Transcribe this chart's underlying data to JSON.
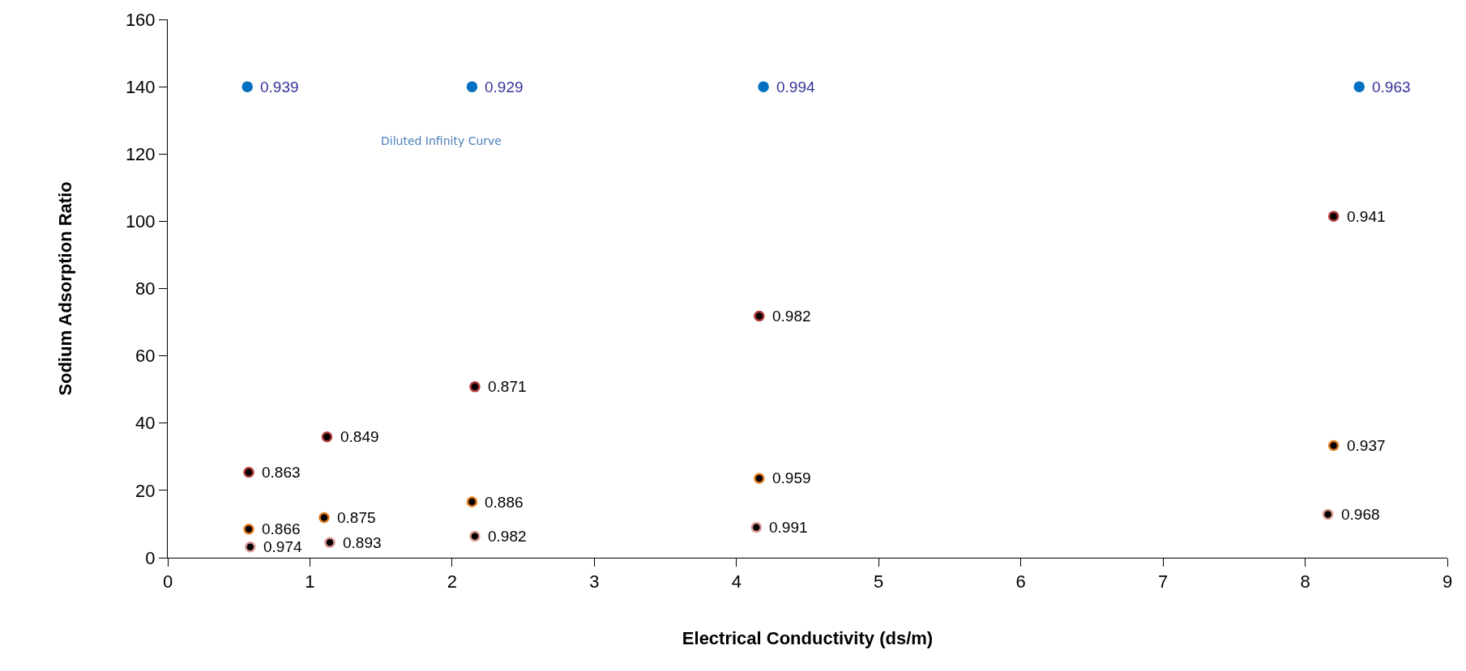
{
  "chart_data": {
    "type": "scatter",
    "xlabel": "Electrical Conductivity (ds/m)",
    "ylabel": "Sodium Adsorption Ratio",
    "xlim": [
      0,
      9
    ],
    "xticks": [
      0,
      1,
      2,
      3,
      4,
      5,
      6,
      7,
      8,
      9
    ],
    "ylim": [
      0,
      160
    ],
    "yticks": [
      0,
      20,
      40,
      60,
      80,
      100,
      120,
      140,
      160
    ],
    "marker": "circle",
    "series": [
      {
        "color": "#0070c0",
        "x": [
          0.56,
          2.14,
          4.19,
          8.38
        ],
        "values": [
          140,
          140,
          140,
          140
        ]
      },
      {
        "color": "#b03a3a",
        "x": [
          0.57,
          1.12,
          2.16,
          4.16,
          8.2
        ],
        "values": [
          25.4,
          35.9,
          50.8,
          71.8,
          101.5
        ]
      },
      {
        "color": "#e07b20",
        "x": [
          0.57,
          1.1,
          2.14,
          4.16,
          8.2
        ],
        "values": [
          8.5,
          11.9,
          16.6,
          23.6,
          33.3
        ]
      },
      {
        "color": "#d99694",
        "x": [
          0.58,
          1.14,
          2.16,
          4.14,
          8.16
        ],
        "values": [
          3.2,
          4.5,
          6.4,
          9.0,
          12.9
        ]
      }
    ],
    "annotations": [
      "Diluted Infinity Curve",
      {
        "text": "0.939",
        "x": 0.56,
        "y": 140
      },
      {
        "text": "0.929",
        "x": 2.14,
        "y": 140
      },
      {
        "text": "0.994",
        "x": 4.19,
        "y": 140
      },
      {
        "text": "0.963",
        "x": 8.38,
        "y": 140
      },
      {
        "text": "0.863",
        "x": 0.57,
        "y": 25.4
      },
      {
        "text": "0.849",
        "x": 1.12,
        "y": 35.9
      },
      {
        "text": "0.871",
        "x": 2.16,
        "y": 50.8
      },
      {
        "text": "0.982",
        "x": 4.16,
        "y": 71.8
      },
      {
        "text": "0.941",
        "x": 8.2,
        "y": 101.5
      },
      {
        "text": "0.866",
        "x": 0.57,
        "y": 8.5
      },
      {
        "text": "0.875",
        "x": 1.1,
        "y": 11.9
      },
      {
        "text": "0.886",
        "x": 2.14,
        "y": 16.6
      },
      {
        "text": "0.959",
        "x": 4.16,
        "y": 23.6
      },
      {
        "text": "0.937",
        "x": 8.2,
        "y": 33.3
      },
      {
        "text": "0.974",
        "x": 0.58,
        "y": 3.2
      },
      {
        "text": "0.893",
        "x": 1.14,
        "y": 4.5
      },
      {
        "text": "0.982",
        "x": 2.16,
        "y": 6.4
      },
      {
        "text": "0.991",
        "x": 4.14,
        "y": 9.0
      },
      {
        "text": "0.968",
        "x": 8.16,
        "y": 12.9
      }
    ]
  }
}
